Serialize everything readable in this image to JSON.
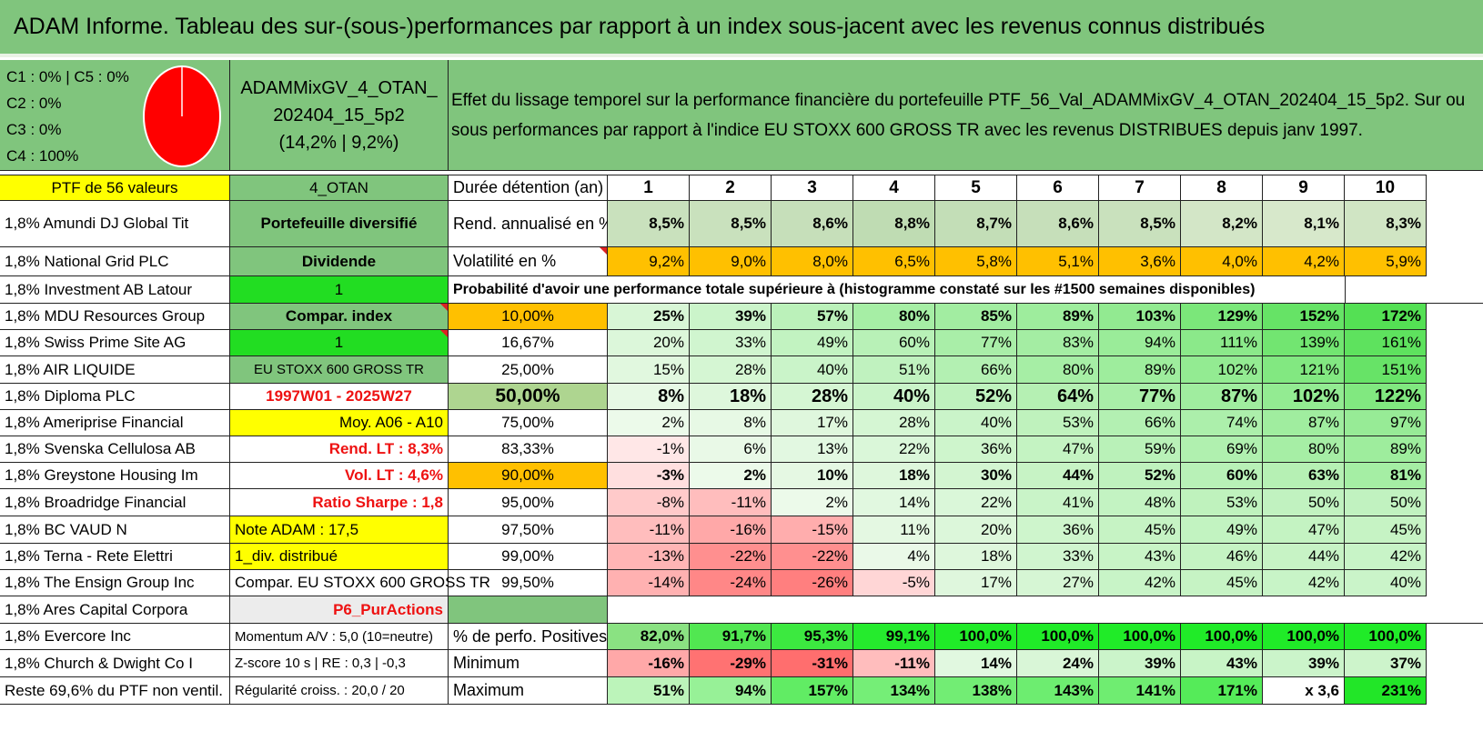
{
  "title": "ADAM Informe. Tableau des sur-(sous-)performances par rapport à un index sous-jacent avec les revenus connus distribués",
  "classes": [
    "C1 : 0% | C5 : 0%",
    "C2 : 0%",
    "C3 : 0%",
    "C4 : 100%"
  ],
  "pie": {
    "color": "#ff0000",
    "value_percent": 100
  },
  "fund_name": "ADAMMixGV_4_OTAN_202404_15_5p2",
  "fund_perf": "(14,2% | 9,2%)",
  "description": "Effet du lissage temporel sur la performance financière du portefeuille PTF_56_Val_ADAMMixGV_4_OTAN_202404_15_5p2. Sur ou sous performances par rapport à l'indice EU STOXX 600 GROSS TR avec les revenus DISTRIBUES depuis janv 1997.",
  "ptf_header": "PTF de 56 valeurs",
  "strategy_header": "4_OTAN",
  "holdings": [
    "1,8% Amundi DJ Global Tit",
    "1,8% National Grid PLC",
    "1,8% Investment AB Latour",
    "1,8% MDU Resources Group",
    "1,8% Swiss Prime Site AG",
    "1,8% AIR LIQUIDE",
    "1,8% Diploma PLC",
    "1,8% Ameriprise Financial",
    "1,8% Svenska Cellulosa AB",
    "1,8% Greystone Housing Im",
    "1,8% Broadridge Financial",
    "1,8% BC VAUD N",
    "1,8% Terna - Rete Elettri",
    "1,8% The Ensign Group Inc",
    "1,8% Ares Capital Corpora",
    "1,8% Evercore Inc",
    "1,8% Church & Dwight Co I",
    "Reste 69,6% du PTF non ventil."
  ],
  "info": [
    "Portefeuille diversifié",
    "Dividende",
    "1",
    "Compar. index",
    "1",
    "EU STOXX 600 GROSS TR",
    "1997W01 - 2025W27",
    "Moy. A06 - A10",
    "Rend. LT : 8,3%",
    "Vol. LT : 4,6%",
    "Ratio Sharpe : 1,8",
    "Note ADAM : 17,5",
    "1_div. distribué",
    "Compar. EU STOXX 600 GROSS TR",
    "P6_PurActions",
    "Momentum A/V : 5,0 (10=neutre)",
    "Z-score 10 s | RE : 0,3 | -0,3",
    "Régularité croiss. : 20,0 / 20"
  ],
  "duration_label": "Durée détention (an)",
  "years": [
    "1",
    "2",
    "3",
    "4",
    "5",
    "6",
    "7",
    "8",
    "9",
    "10"
  ],
  "rend_label": "Rend. annualisé en %",
  "rend": [
    "8,5%",
    "8,5%",
    "8,6%",
    "8,8%",
    "8,7%",
    "8,6%",
    "8,5%",
    "8,2%",
    "8,1%",
    "8,3%"
  ],
  "vol_label": "Volatilité en %",
  "vol": [
    "9,2%",
    "9,0%",
    "8,0%",
    "6,5%",
    "5,8%",
    "5,1%",
    "3,6%",
    "4,0%",
    "4,2%",
    "5,9%"
  ],
  "proba_label": "Probabilité d'avoir une performance totale supérieure à (histogramme constaté sur les #1500 semaines disponibles)",
  "quantiles": [
    {
      "label": "10,00%",
      "values": [
        "25%",
        "39%",
        "57%",
        "80%",
        "85%",
        "89%",
        "103%",
        "129%",
        "152%",
        "172%"
      ]
    },
    {
      "label": "16,67%",
      "values": [
        "20%",
        "33%",
        "49%",
        "60%",
        "77%",
        "83%",
        "94%",
        "111%",
        "139%",
        "161%"
      ]
    },
    {
      "label": "25,00%",
      "values": [
        "15%",
        "28%",
        "40%",
        "51%",
        "66%",
        "80%",
        "89%",
        "102%",
        "121%",
        "151%"
      ]
    },
    {
      "label": "50,00%",
      "values": [
        "8%",
        "18%",
        "28%",
        "40%",
        "52%",
        "64%",
        "77%",
        "87%",
        "102%",
        "122%"
      ]
    },
    {
      "label": "75,00%",
      "values": [
        "2%",
        "8%",
        "17%",
        "28%",
        "40%",
        "53%",
        "66%",
        "74%",
        "87%",
        "97%"
      ]
    },
    {
      "label": "83,33%",
      "values": [
        "-1%",
        "6%",
        "13%",
        "22%",
        "36%",
        "47%",
        "59%",
        "69%",
        "80%",
        "89%"
      ]
    },
    {
      "label": "90,00%",
      "values": [
        "-3%",
        "2%",
        "10%",
        "18%",
        "30%",
        "44%",
        "52%",
        "60%",
        "63%",
        "81%"
      ]
    },
    {
      "label": "95,00%",
      "values": [
        "-8%",
        "-11%",
        "2%",
        "14%",
        "22%",
        "41%",
        "48%",
        "53%",
        "50%",
        "50%"
      ]
    },
    {
      "label": "97,50%",
      "values": [
        "-11%",
        "-16%",
        "-15%",
        "11%",
        "20%",
        "36%",
        "45%",
        "49%",
        "47%",
        "45%"
      ]
    },
    {
      "label": "99,00%",
      "values": [
        "-13%",
        "-22%",
        "-22%",
        "4%",
        "18%",
        "33%",
        "43%",
        "46%",
        "44%",
        "42%"
      ]
    },
    {
      "label": "99,50%",
      "values": [
        "-14%",
        "-24%",
        "-26%",
        "-5%",
        "17%",
        "27%",
        "42%",
        "45%",
        "42%",
        "40%"
      ]
    }
  ],
  "positive_label": "% de perfo. Positives",
  "positive": [
    "82,0%",
    "91,7%",
    "95,3%",
    "99,1%",
    "100,0%",
    "100,0%",
    "100,0%",
    "100,0%",
    "100,0%",
    "100,0%"
  ],
  "min_label": "Minimum",
  "minimum": [
    "-16%",
    "-29%",
    "-31%",
    "-11%",
    "14%",
    "24%",
    "39%",
    "43%",
    "39%",
    "37%"
  ],
  "max_label": "Maximum",
  "maximum": [
    "51%",
    "94%",
    "157%",
    "134%",
    "138%",
    "143%",
    "141%",
    "171%",
    "x 3,6",
    "231%"
  ],
  "colors": {
    "title_green": "#80c57d",
    "yellow": "#ffff00",
    "bright_green": "#22dd22",
    "orange": "#ffc000",
    "red_text": "#ee1111",
    "pie_red": "#ff0000"
  }
}
